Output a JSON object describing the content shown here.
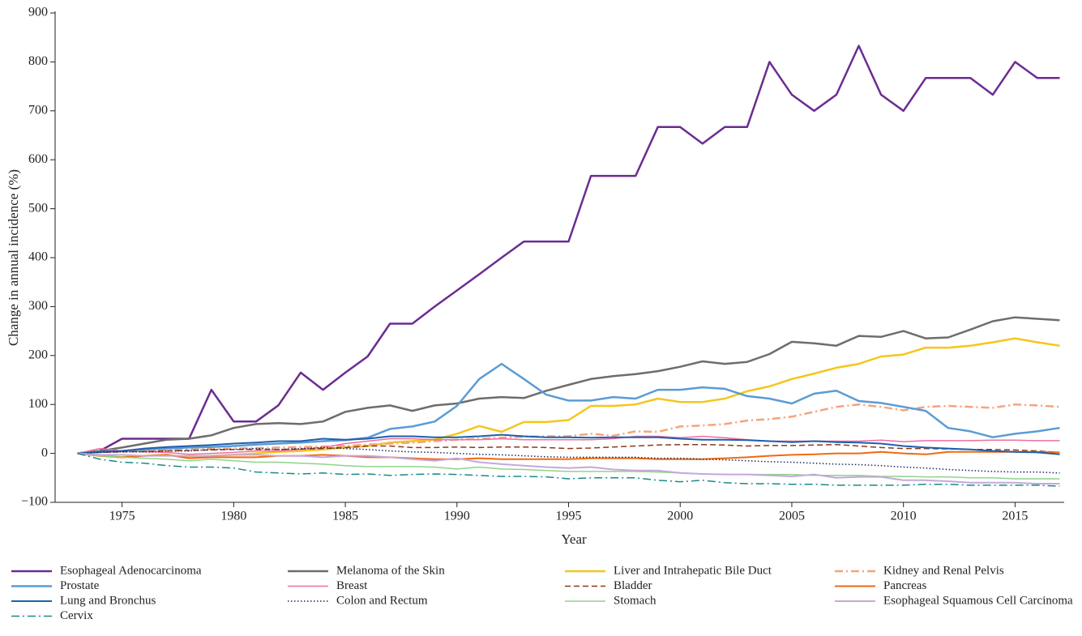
{
  "chart_data": {
    "type": "line",
    "x_label": "Year",
    "y_label": "Change in annual incidence (%)",
    "x": [
      1973,
      1974,
      1975,
      1976,
      1977,
      1978,
      1979,
      1980,
      1981,
      1982,
      1983,
      1984,
      1985,
      1986,
      1987,
      1988,
      1989,
      1990,
      1991,
      1992,
      1993,
      1994,
      1995,
      1996,
      1997,
      1998,
      1999,
      2000,
      2001,
      2002,
      2003,
      2004,
      2005,
      2006,
      2007,
      2008,
      2009,
      2010,
      2011,
      2012,
      2013,
      2014,
      2015,
      2016,
      2017
    ],
    "xlim": [
      1972,
      2017.2
    ],
    "xticks": [
      1975,
      1980,
      1985,
      1990,
      1995,
      2000,
      2005,
      2010,
      2015
    ],
    "ylim": [
      -100,
      900
    ],
    "yticks": [
      {
        "value": -100,
        "label": "−100"
      },
      0,
      100,
      200,
      300,
      400,
      500,
      600,
      700,
      800,
      900
    ],
    "series": [
      {
        "name": "Esophageal Adenocarcinoma",
        "color": "#6a2c91",
        "dash": "solid",
        "width": 2.5,
        "values": [
          0,
          5,
          30,
          30,
          30,
          30,
          130,
          65,
          65,
          98,
          165,
          130,
          165,
          198,
          265,
          265,
          300,
          333,
          366,
          400,
          433,
          433,
          433,
          567,
          567,
          567,
          667,
          667,
          633,
          667,
          667,
          800,
          733,
          700,
          733,
          833,
          733,
          700,
          767,
          767,
          767,
          733,
          800,
          767,
          767
        ]
      },
      {
        "name": "Melanoma of the Skin",
        "color": "#6d6d6d",
        "dash": "solid",
        "width": 2.5,
        "values": [
          0,
          5,
          12,
          20,
          28,
          30,
          37,
          52,
          60,
          62,
          60,
          65,
          85,
          93,
          98,
          87,
          98,
          102,
          112,
          115,
          113,
          128,
          140,
          152,
          158,
          162,
          168,
          177,
          188,
          183,
          187,
          203,
          228,
          225,
          220,
          240,
          238,
          250,
          235,
          237,
          253,
          270,
          278,
          275,
          272
        ]
      },
      {
        "name": "Liver and Intrahepatic Bile Duct",
        "color": "#f5c61a",
        "dash": "solid",
        "width": 2.5,
        "values": [
          0,
          -5,
          -8,
          -5,
          -3,
          -8,
          -5,
          -3,
          0,
          3,
          5,
          8,
          12,
          15,
          22,
          25,
          28,
          40,
          56,
          44,
          64,
          64,
          68,
          97,
          97,
          100,
          112,
          105,
          105,
          112,
          127,
          137,
          152,
          163,
          175,
          183,
          198,
          202,
          216,
          216,
          220,
          227,
          235,
          227,
          220
        ]
      },
      {
        "name": "Kidney and Renal Pelvis",
        "color": "#f4a47a",
        "dash": "dashdot",
        "width": 2.5,
        "values": [
          0,
          3,
          5,
          6,
          7,
          8,
          9,
          10,
          11,
          12,
          13,
          14,
          15,
          18,
          20,
          22,
          25,
          28,
          30,
          32,
          34,
          35,
          35,
          40,
          36,
          45,
          44,
          55,
          57,
          60,
          67,
          70,
          75,
          85,
          95,
          100,
          95,
          88,
          95,
          97,
          95,
          93,
          100,
          98,
          95
        ]
      },
      {
        "name": "Prostate",
        "color": "#5b9bd5",
        "dash": "solid",
        "width": 2.5,
        "values": [
          0,
          3,
          5,
          8,
          10,
          12,
          13,
          15,
          18,
          20,
          22,
          25,
          27,
          32,
          50,
          55,
          65,
          97,
          152,
          183,
          152,
          120,
          108,
          108,
          115,
          112,
          130,
          130,
          135,
          132,
          117,
          112,
          102,
          122,
          128,
          107,
          103,
          95,
          87,
          52,
          45,
          33,
          40,
          45,
          52
        ]
      },
      {
        "name": "Breast",
        "color": "#ef6ea0",
        "dash": "solid",
        "width": 1.5,
        "values": [
          0,
          10,
          5,
          3,
          2,
          -2,
          0,
          2,
          5,
          5,
          8,
          12,
          20,
          25,
          30,
          30,
          28,
          28,
          28,
          30,
          28,
          28,
          28,
          28,
          30,
          35,
          35,
          32,
          35,
          32,
          28,
          25,
          25,
          25,
          25,
          25,
          27,
          24,
          26,
          26,
          26,
          27,
          27,
          26,
          26
        ]
      },
      {
        "name": "Bladder",
        "color": "#8b3a1a",
        "dash": "dashed",
        "width": 1.5,
        "values": [
          0,
          2,
          3,
          4,
          5,
          6,
          7,
          8,
          8,
          8,
          9,
          10,
          12,
          15,
          15,
          12,
          12,
          13,
          12,
          13,
          13,
          12,
          10,
          11,
          13,
          15,
          17,
          18,
          18,
          17,
          15,
          16,
          16,
          17,
          18,
          15,
          12,
          10,
          10,
          9,
          8,
          8,
          7,
          5,
          2
        ]
      },
      {
        "name": "Pancreas",
        "color": "#f06a10",
        "dash": "solid",
        "width": 2,
        "values": [
          0,
          -5,
          -8,
          -5,
          -3,
          -10,
          -8,
          -8,
          -8,
          -5,
          -5,
          -3,
          -5,
          -8,
          -8,
          -10,
          -12,
          -12,
          -10,
          -12,
          -12,
          -12,
          -12,
          -10,
          -10,
          -10,
          -12,
          -12,
          -12,
          -10,
          -8,
          -5,
          -3,
          -2,
          0,
          0,
          3,
          0,
          -2,
          3,
          3,
          3,
          3,
          3,
          2
        ]
      },
      {
        "name": "Lung and Bronchus",
        "color": "#1f5fad",
        "dash": "solid",
        "width": 2,
        "values": [
          0,
          3,
          5,
          10,
          13,
          15,
          17,
          20,
          22,
          25,
          25,
          30,
          28,
          30,
          35,
          35,
          33,
          33,
          35,
          38,
          35,
          33,
          33,
          32,
          33,
          33,
          33,
          30,
          28,
          28,
          27,
          25,
          23,
          25,
          23,
          22,
          20,
          15,
          12,
          10,
          8,
          5,
          3,
          2,
          -2
        ]
      },
      {
        "name": "Colon and Rectum",
        "color": "#1a2a5a",
        "dash": "dotted",
        "width": 1.5,
        "values": [
          0,
          2,
          3,
          3,
          5,
          5,
          8,
          8,
          10,
          8,
          10,
          12,
          10,
          8,
          5,
          3,
          2,
          0,
          -2,
          -3,
          -5,
          -7,
          -8,
          -8,
          -8,
          -8,
          -10,
          -10,
          -12,
          -13,
          -15,
          -17,
          -18,
          -20,
          -22,
          -23,
          -25,
          -28,
          -30,
          -33,
          -35,
          -37,
          -38,
          -38,
          -40
        ]
      },
      {
        "name": "Stomach",
        "color": "#8fd48a",
        "dash": "solid",
        "width": 1.5,
        "values": [
          0,
          -5,
          -8,
          -10,
          -12,
          -15,
          -12,
          -15,
          -18,
          -18,
          -20,
          -22,
          -25,
          -27,
          -27,
          -27,
          -28,
          -32,
          -28,
          -32,
          -33,
          -35,
          -37,
          -37,
          -37,
          -37,
          -38,
          -40,
          -42,
          -43,
          -43,
          -43,
          -43,
          -45,
          -45,
          -45,
          -47,
          -47,
          -48,
          -48,
          -50,
          -50,
          -52,
          -52,
          -52
        ]
      },
      {
        "name": "Esophageal Squamous Cell Carcinoma",
        "color": "#c5a8dc",
        "dash": "solid",
        "width": 2,
        "values": [
          0,
          -3,
          -3,
          -5,
          -5,
          -5,
          -5,
          -3,
          -3,
          -5,
          -5,
          -8,
          -5,
          -5,
          -8,
          -12,
          -15,
          -10,
          -18,
          -22,
          -25,
          -28,
          -30,
          -28,
          -33,
          -35,
          -35,
          -40,
          -42,
          -43,
          -43,
          -45,
          -47,
          -43,
          -50,
          -48,
          -48,
          -55,
          -55,
          -57,
          -60,
          -60,
          -60,
          -62,
          -62
        ]
      },
      {
        "name": "Cervix",
        "color": "#1a8a8a",
        "dash": "dashdot",
        "width": 1.5,
        "values": [
          0,
          -12,
          -18,
          -20,
          -25,
          -28,
          -28,
          -30,
          -38,
          -40,
          -42,
          -40,
          -43,
          -42,
          -45,
          -43,
          -42,
          -43,
          -45,
          -47,
          -47,
          -48,
          -52,
          -50,
          -50,
          -50,
          -55,
          -58,
          -55,
          -60,
          -62,
          -62,
          -63,
          -63,
          -65,
          -65,
          -65,
          -65,
          -63,
          -63,
          -65,
          -65,
          -65,
          -65,
          -67
        ]
      }
    ]
  }
}
